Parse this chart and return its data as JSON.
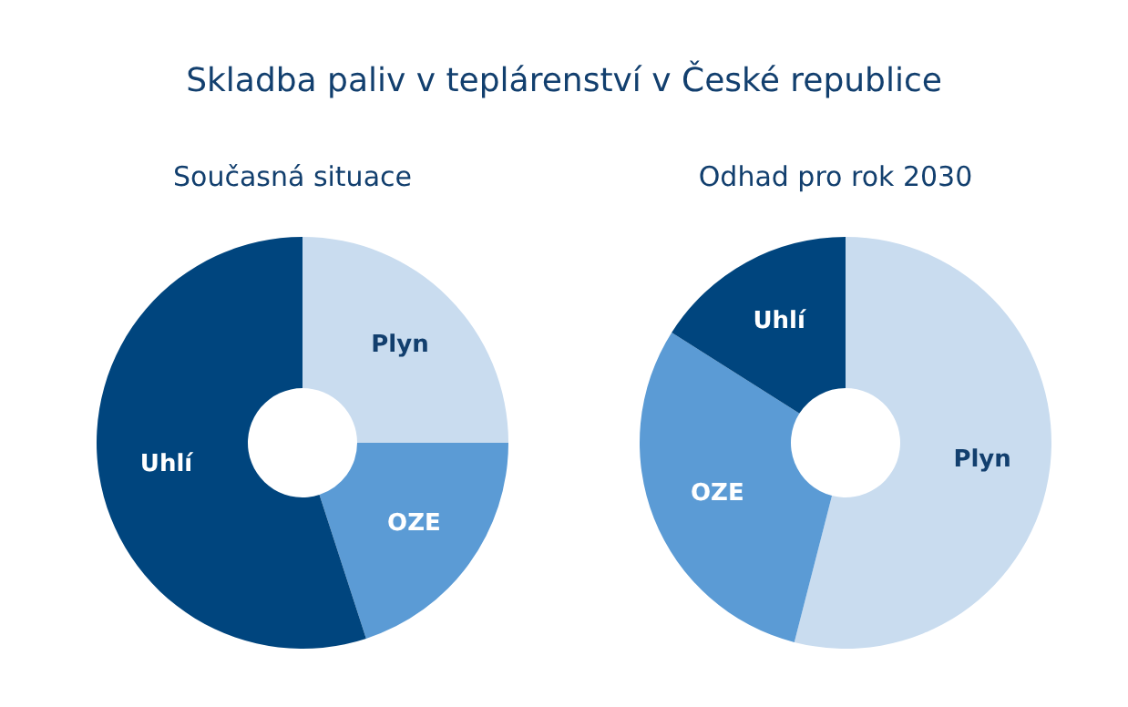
{
  "chart_data": [
    {
      "type": "donut",
      "title": "Skladba paliv v teplárenství v České republice",
      "subtitle": "Současná situace",
      "categories": [
        "Plyn",
        "OZE",
        "Uhlí"
      ],
      "values": [
        25,
        20,
        55
      ],
      "colors": [
        "#c9dcef",
        "#5b9bd5",
        "#00457e"
      ]
    },
    {
      "type": "donut",
      "subtitle": "Odhad pro rok 2030",
      "categories": [
        "Plyn",
        "OZE",
        "Uhlí"
      ],
      "values": [
        54,
        30,
        16
      ],
      "colors": [
        "#c9dcef",
        "#5b9bd5",
        "#00457e"
      ]
    }
  ]
}
